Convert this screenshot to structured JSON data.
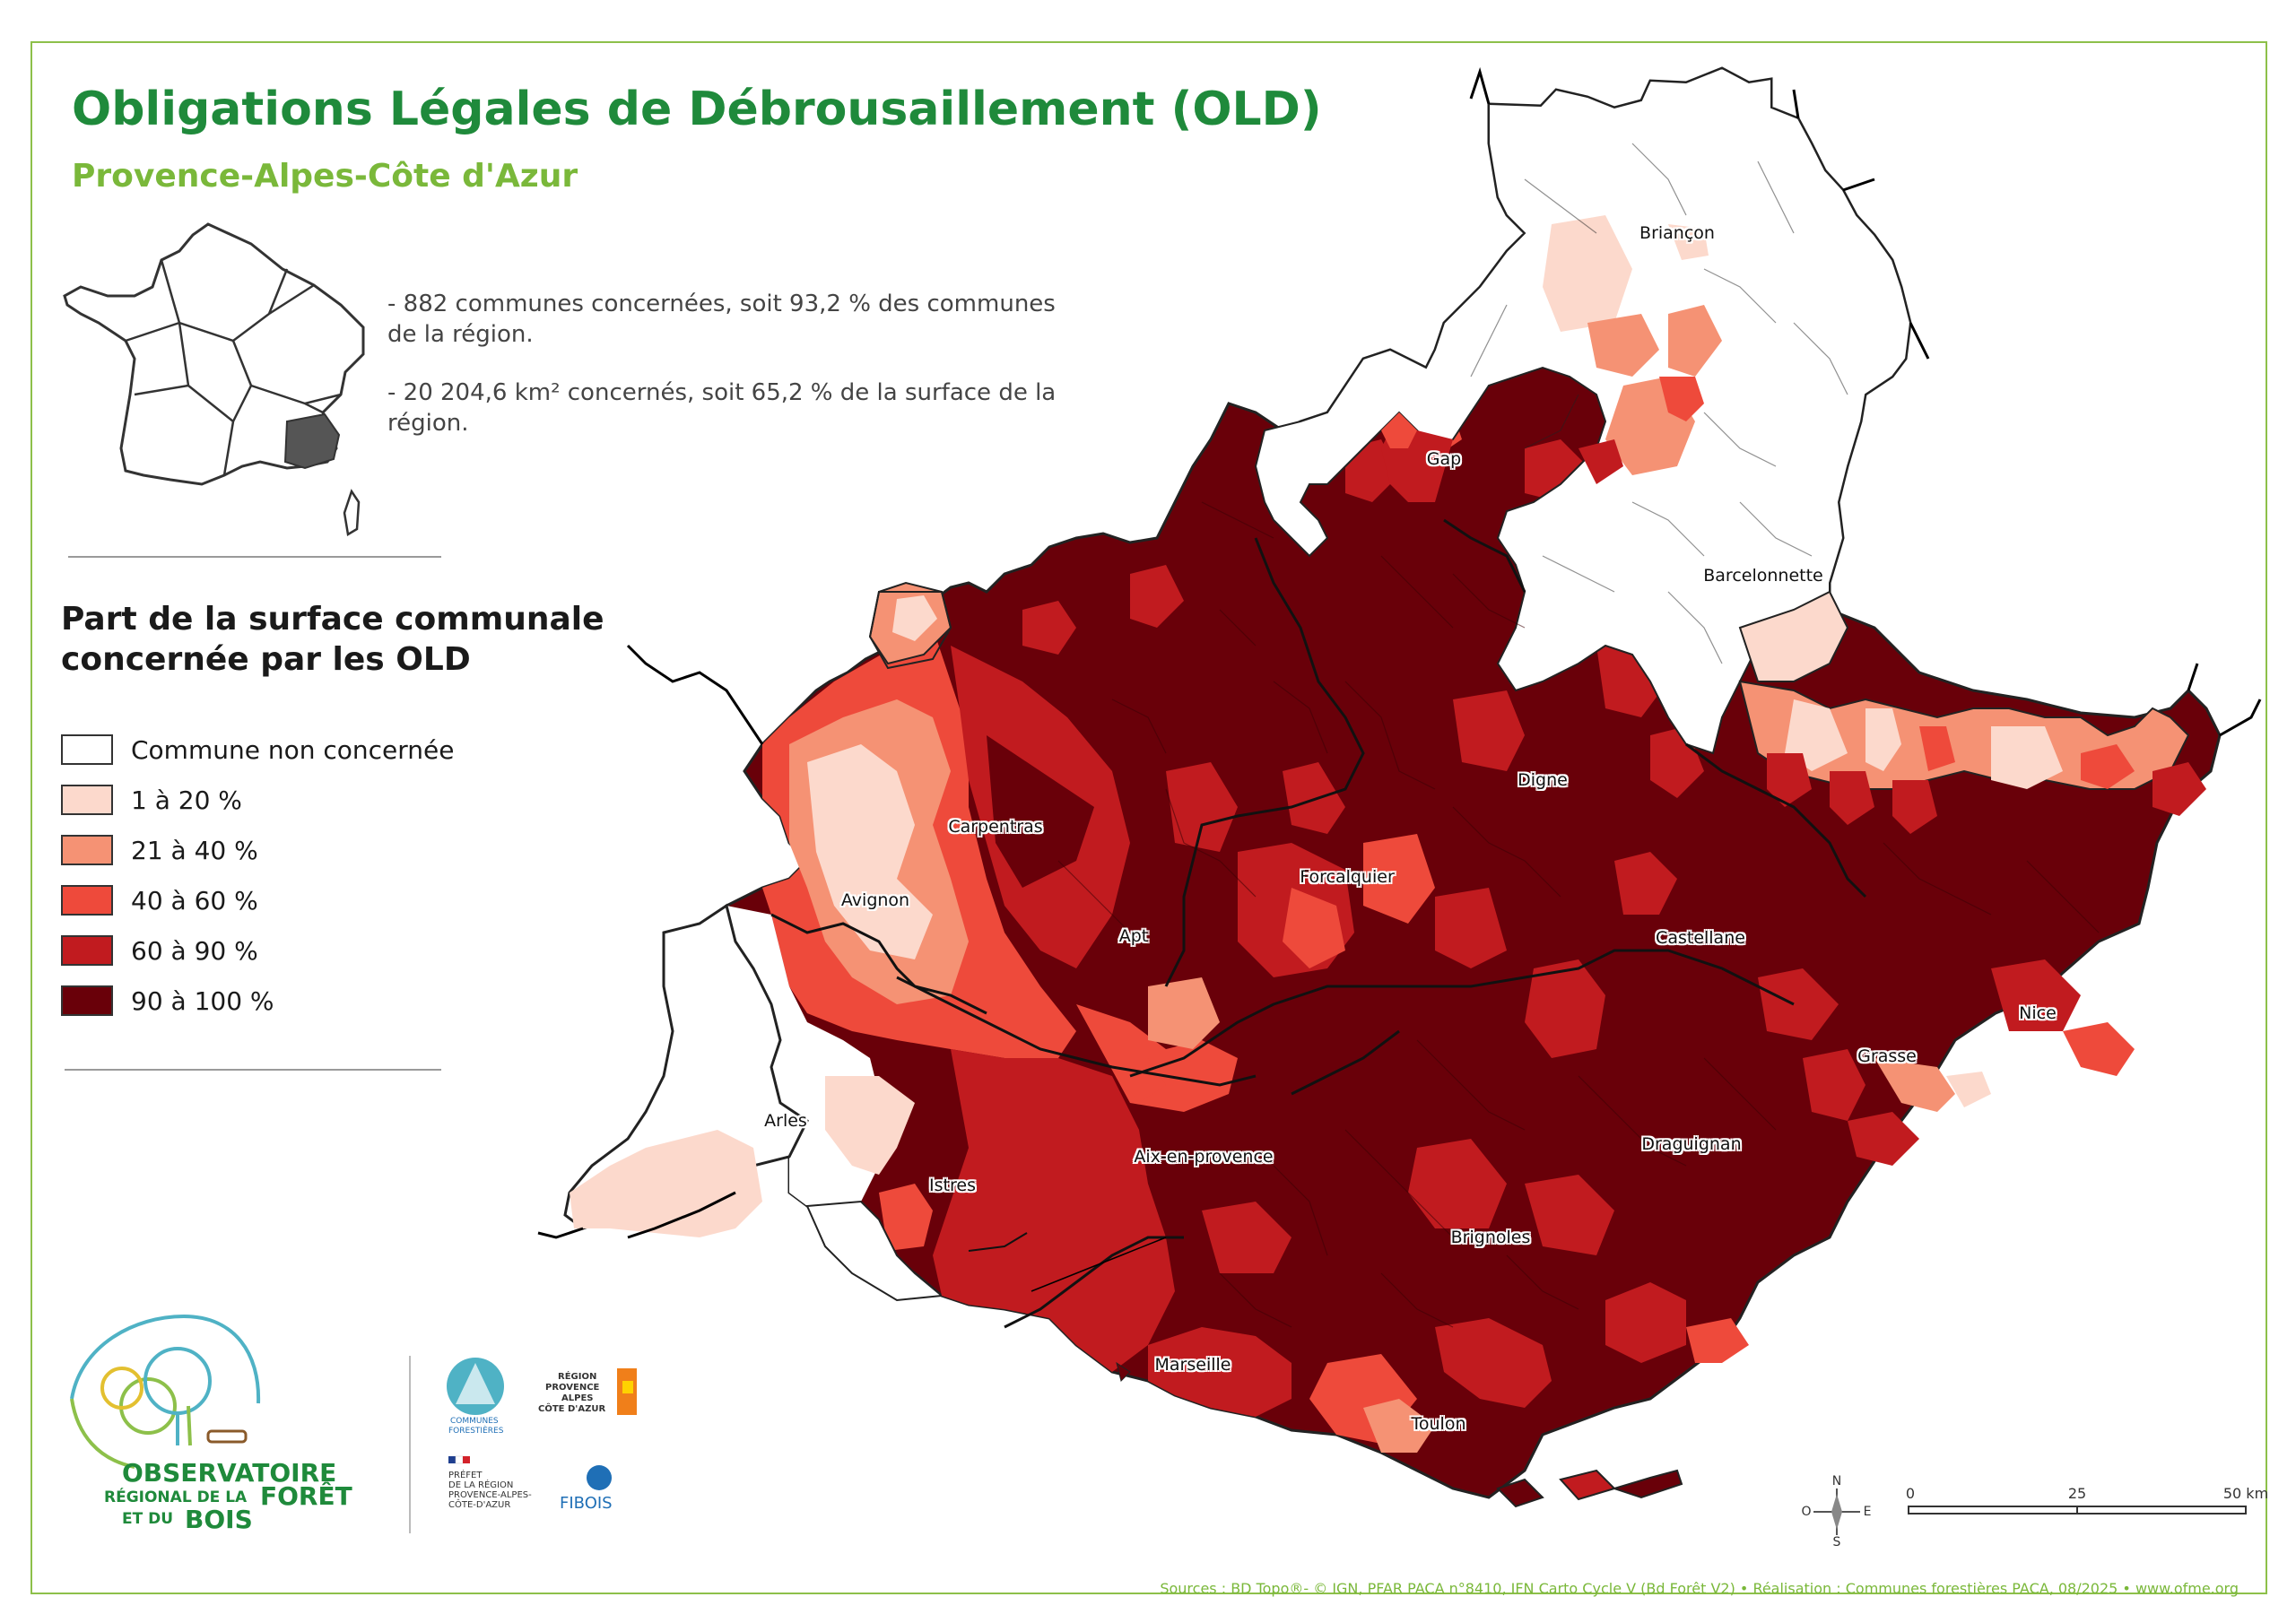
{
  "title": "Obligations Légales de Débrousaillement (OLD)",
  "subtitle": "Provence-Alpes-Côte d'Azur",
  "stats": [
    "- 882 communes concernées, soit 93,2 % des communes de la région.",
    "- 20 204,6 km² concernés, soit 65,2 % de la surface de la région."
  ],
  "legend": {
    "title_line1": "Part de la surface communale",
    "title_line2": "concernée par les OLD",
    "items": [
      {
        "label": "Commune non concernée",
        "color": "#ffffff"
      },
      {
        "label": "1 à 20 %",
        "color": "#fcd9cc"
      },
      {
        "label": "21 à 40 %",
        "color": "#f59274"
      },
      {
        "label": "40 à 60 %",
        "color": "#ee4a3b"
      },
      {
        "label": "60 à 90 %",
        "color": "#c11b1f"
      },
      {
        "label": "90 à 100 %",
        "color": "#690009"
      }
    ]
  },
  "cities": [
    "Briançon",
    "Gap",
    "Barcelonnette",
    "Digne",
    "Carpentras",
    "Forcalquier",
    "Avignon",
    "Apt",
    "Castellane",
    "Nice",
    "Grasse",
    "Arles",
    "Aix-en-provence",
    "Draguignan",
    "Istres",
    "Brignoles",
    "Marseille",
    "Toulon"
  ],
  "scale": {
    "labels": [
      "0",
      "25",
      "50 km"
    ]
  },
  "compass": {
    "n": "N",
    "s": "S",
    "e": "E",
    "o": "O"
  },
  "logos": {
    "ofb_line1": "OBSERVATOIRE",
    "ofb_line2a": "RÉGIONAL DE LA",
    "ofb_line2b": "FORÊT",
    "ofb_line3a": "ET DU",
    "ofb_line3b": "BOIS",
    "communes_line1": "COMMUNES",
    "communes_line2": "FORESTIÈRES",
    "region_line1": "RÉGION",
    "region_line2": "PROVENCE",
    "region_line3": "ALPES",
    "region_line4": "CÔTE D'AZUR",
    "prefet_line1": "PRÉFET",
    "prefet_line2": "DE LA RÉGION",
    "prefet_line3": "PROVENCE-ALPES-",
    "prefet_line4": "CÔTE-D'AZUR",
    "fibois": "FIBOIS"
  },
  "sources": "Sources : BD Topo®- © IGN, PFAR PACA n°8410, IFN Carto Cycle V (Bd Forêt V2) • Réalisation : Communes forestières PACA, 08/2025 • www.ofme.org"
}
